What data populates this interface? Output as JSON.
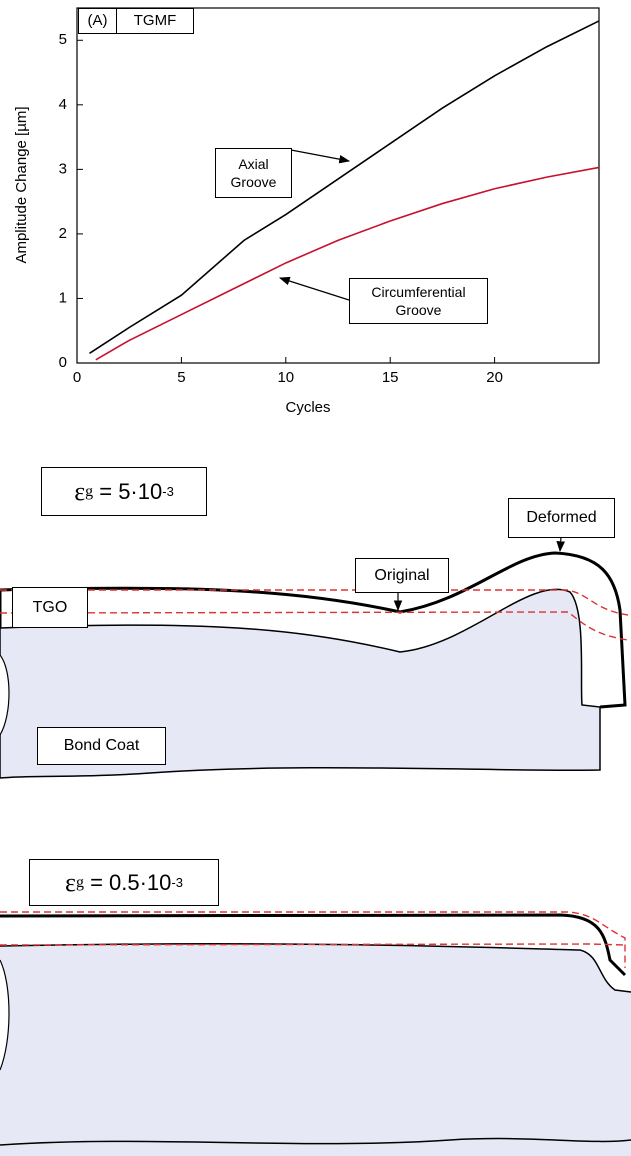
{
  "chart_data": {
    "type": "line",
    "annotations": [
      "(A)",
      "TGMF"
    ],
    "x_label": "Cycles",
    "y_label": "Amplitude Change [µm]",
    "xlim": [
      0,
      25
    ],
    "ylim": [
      0,
      5.5
    ],
    "xticks": [
      0,
      5,
      10,
      15,
      20
    ],
    "yticks": [
      0,
      1,
      2,
      3,
      4,
      5
    ],
    "series": [
      {
        "name": "Axial Groove",
        "color": "#000000",
        "x": [
          0.6,
          2.5,
          5,
          8,
          10,
          12.5,
          15,
          17.5,
          20,
          22.5,
          25
        ],
        "values": [
          0.15,
          0.55,
          1.05,
          1.9,
          2.3,
          2.85,
          3.4,
          3.95,
          4.45,
          4.9,
          5.3
        ]
      },
      {
        "name": "Circumferential Groove",
        "color": "#c8102e",
        "x": [
          0.9,
          2.5,
          5,
          7.5,
          10,
          12.5,
          15,
          17.5,
          20,
          22.5,
          25
        ],
        "values": [
          0.05,
          0.35,
          0.75,
          1.15,
          1.55,
          1.9,
          2.2,
          2.47,
          2.7,
          2.88,
          3.03
        ]
      }
    ]
  },
  "diagrams": [
    {
      "strain": [
        "ε",
        "g",
        " = 5·10",
        "-3"
      ],
      "labels": [
        "Deformed",
        "Original",
        "TGO",
        "Bond Coat"
      ]
    },
    {
      "strain": [
        "ε",
        "g",
        " = 0.5·10",
        "-3"
      ]
    }
  ]
}
